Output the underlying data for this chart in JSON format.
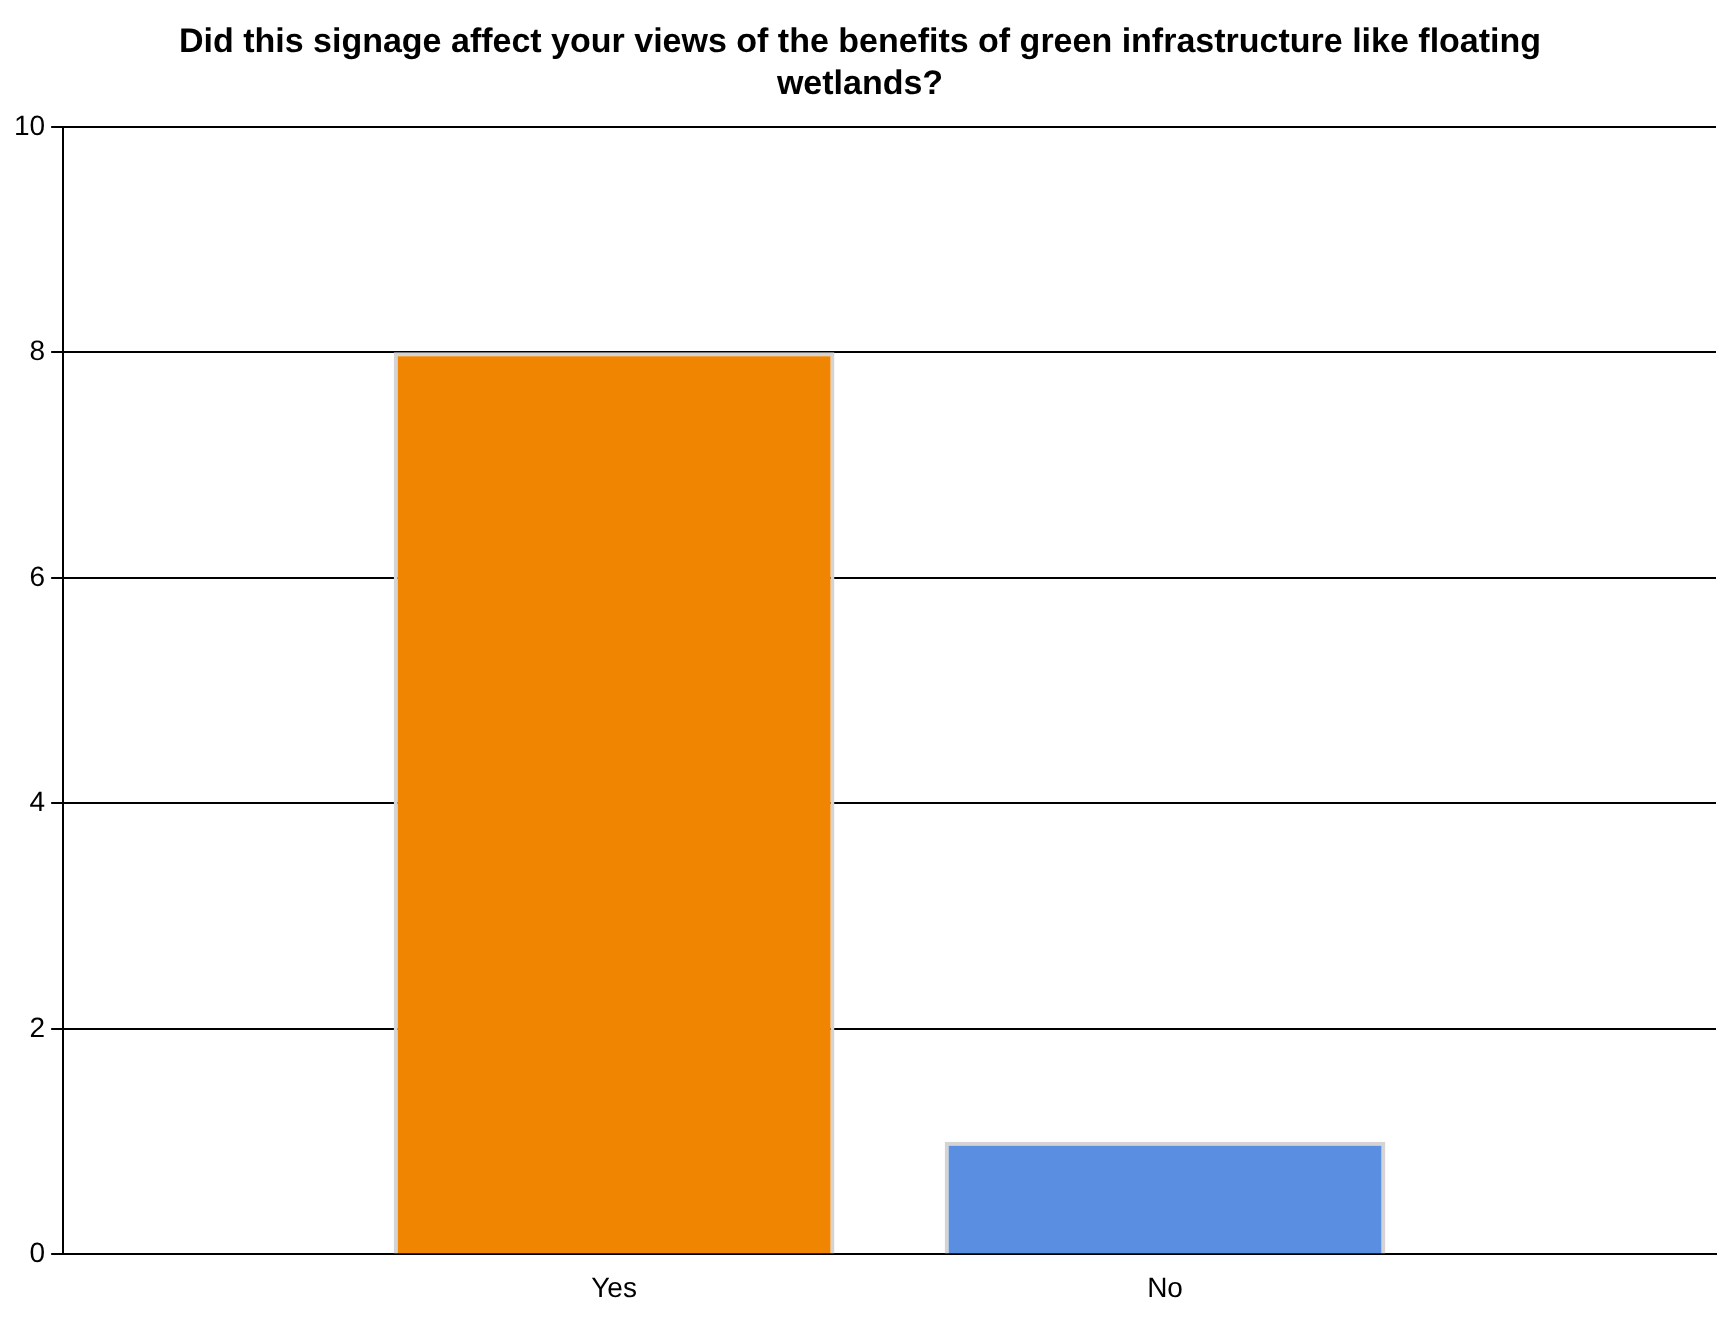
{
  "chart_data": {
    "type": "bar",
    "title": "Did this signage affect your views of the benefits of green infrastructure like floating wetlands?",
    "categories": [
      "Yes",
      "No"
    ],
    "values": [
      8,
      1
    ],
    "colors": [
      "#ef8500",
      "#5a8ee0"
    ],
    "ylim": [
      0,
      10
    ],
    "yticks": [
      0,
      2,
      4,
      6,
      8,
      10
    ],
    "grid": "y",
    "legend": false
  }
}
